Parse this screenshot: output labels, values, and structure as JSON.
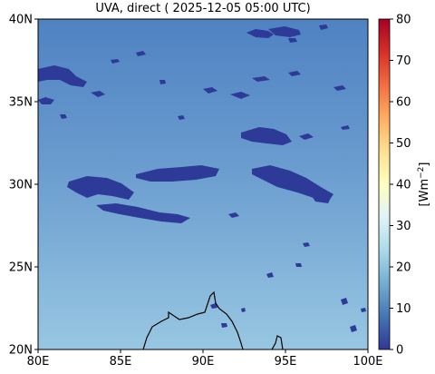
{
  "title": "UVA, direct ( 2025-12-05 05:00 UTC)",
  "map": {
    "lon_range": [
      80,
      100
    ],
    "lat_range": [
      20,
      40
    ],
    "x_ticks": [
      {
        "value": 80,
        "label": "80E"
      },
      {
        "value": 85,
        "label": "85E"
      },
      {
        "value": 90,
        "label": "90E"
      },
      {
        "value": 95,
        "label": "95E"
      },
      {
        "value": 100,
        "label": "100E"
      }
    ],
    "y_ticks": [
      {
        "value": 20,
        "label": "20N"
      },
      {
        "value": 25,
        "label": "25N"
      },
      {
        "value": 30,
        "label": "30N"
      },
      {
        "value": 35,
        "label": "35N"
      },
      {
        "value": 40,
        "label": "40N"
      }
    ],
    "colors": {
      "background_north": "#4f82c2",
      "background_mid": "#6a9ccf",
      "background_south": "#98c7e2",
      "low_value_patches": "#2e3a98",
      "coastline": "#000000"
    }
  },
  "colorbar": {
    "label": "[Wm",
    "label_exponent": "−2",
    "label_close": "]",
    "range": [
      0,
      80
    ],
    "ticks": [
      {
        "value": 0,
        "label": "0"
      },
      {
        "value": 10,
        "label": "10"
      },
      {
        "value": 20,
        "label": "20"
      },
      {
        "value": 30,
        "label": "30"
      },
      {
        "value": 40,
        "label": "40"
      },
      {
        "value": 50,
        "label": "50"
      },
      {
        "value": 60,
        "label": "60"
      },
      {
        "value": 70,
        "label": "70"
      },
      {
        "value": 80,
        "label": "80"
      }
    ],
    "colormap": [
      "#313695",
      "#4575b4",
      "#74add1",
      "#abd9e9",
      "#e0f3f8",
      "#ffffbf",
      "#fee090",
      "#fdae61",
      "#f46d43",
      "#d73027",
      "#a50026"
    ]
  }
}
